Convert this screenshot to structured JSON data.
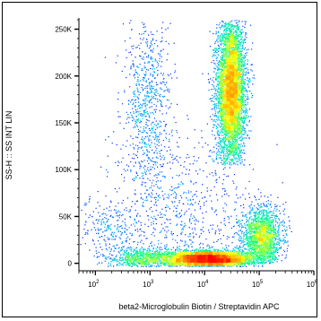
{
  "chart_data": {
    "type": "scatter",
    "title": "",
    "xlabel": "beta2-Microglobulin Biotin / Streptavidin APC",
    "ylabel": "SS-H :: SS INT LIN",
    "xscale": "log",
    "yscale": "linear",
    "xlim": [
      50,
      1000000
    ],
    "ylim": [
      -8000,
      262000
    ],
    "x_ticks": [
      {
        "value": 100,
        "base": "10",
        "exp": "2"
      },
      {
        "value": 1000,
        "base": "10",
        "exp": "3"
      },
      {
        "value": 10000,
        "base": "10",
        "exp": "4"
      },
      {
        "value": 100000,
        "base": "10",
        "exp": "5"
      },
      {
        "value": 1000000,
        "base": "10",
        "exp": "6"
      }
    ],
    "y_ticks": [
      {
        "value": 0,
        "label": "0"
      },
      {
        "value": 50000,
        "label": "50K"
      },
      {
        "value": 100000,
        "label": "100K"
      },
      {
        "value": 150000,
        "label": "150K"
      },
      {
        "value": 200000,
        "label": "200K"
      },
      {
        "value": 250000,
        "label": "250K"
      }
    ],
    "grid": false,
    "legend": "none",
    "density_colormap": [
      "#0000ff",
      "#00bfff",
      "#00ff80",
      "#ffff00",
      "#ff8000",
      "#ff0000"
    ],
    "populations": [
      {
        "x_center": 30000,
        "x_log_sd": 0.13,
        "y_center": 185000,
        "y_sd": 38000,
        "y_min": 105000,
        "y_max": 260000,
        "count": 5200
      },
      {
        "x_center": 12000,
        "x_log_sd": 0.38,
        "y_center": 5000,
        "y_sd": 4500,
        "y_min": -3000,
        "y_max": 30000,
        "count": 4200
      },
      {
        "x_center": 110000,
        "x_log_sd": 0.18,
        "y_center": 28000,
        "y_sd": 16000,
        "y_min": 0,
        "y_max": 80000,
        "count": 1800
      },
      {
        "x_center": 800,
        "x_log_sd": 0.35,
        "y_center": 5000,
        "y_sd": 6000,
        "y_min": -3000,
        "y_max": 35000,
        "count": 800
      },
      {
        "x_center": 900,
        "x_log_sd": 0.22,
        "y_center": 170000,
        "y_sd": 50000,
        "y_min": 60000,
        "y_max": 260000,
        "count": 750
      },
      {
        "x_center": 200,
        "x_log_sd": 0.3,
        "y_center": 35000,
        "y_sd": 14000,
        "y_min": 5000,
        "y_max": 80000,
        "count": 220
      },
      {
        "x_center": 3000,
        "x_log_sd": 0.7,
        "y_center": 60000,
        "y_sd": 40000,
        "y_min": 0,
        "y_max": 160000,
        "count": 700
      }
    ]
  }
}
